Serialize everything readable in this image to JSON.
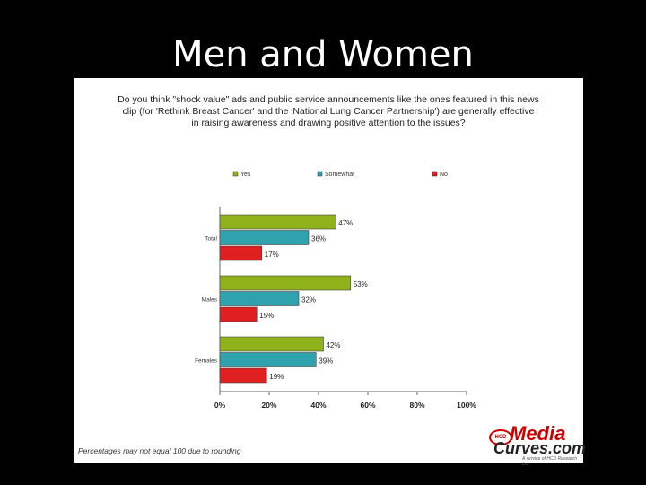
{
  "slide": {
    "title": "Men and Women"
  },
  "question_lines": [
    "Do you think \"shock value\" ads and public service announcements like the ones featured in this news",
    "clip (for 'Rethink Breast Cancer' and the 'National Lung Cancer Partnership') are generally effective",
    "in raising awareness and drawing positive attention to the issues?"
  ],
  "footnote": "Percentages may not equal 100 due to rounding",
  "logo": {
    "badge": "HCD",
    "line1": "Media",
    "line2": "Curves.com",
    "line3": "A service of HCD Research Inc."
  },
  "colors": {
    "yes": "#8fb21a",
    "somewhat": "#2fa3ad",
    "no": "#e02020"
  },
  "chart_data": {
    "type": "bar",
    "orientation": "horizontal",
    "categories": [
      "Total",
      "Males",
      "Females"
    ],
    "series": [
      {
        "name": "Yes",
        "values": [
          47,
          53,
          42
        ]
      },
      {
        "name": "Somewhat",
        "values": [
          36,
          32,
          39
        ]
      },
      {
        "name": "No",
        "values": [
          17,
          15,
          19
        ]
      }
    ],
    "xlim": [
      0,
      100
    ],
    "xticks": [
      "0%",
      "20%",
      "40%",
      "60%",
      "80%",
      "100%"
    ],
    "value_suffix": "%",
    "legend_position": "top",
    "grid": false
  }
}
